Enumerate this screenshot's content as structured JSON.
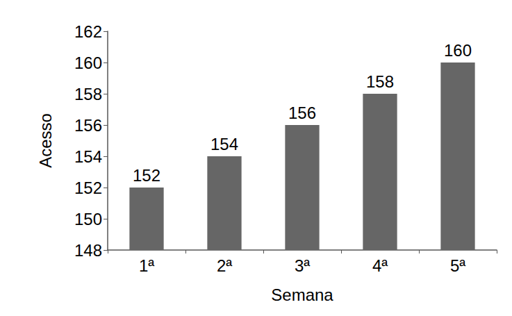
{
  "chart_data": {
    "type": "bar",
    "x_label": "Semana",
    "y_label": "Acesso",
    "categories": [
      "1ª",
      "2ª",
      "3ª",
      "4ª",
      "5ª"
    ],
    "values": [
      152,
      154,
      156,
      158,
      160
    ],
    "color": "#666666",
    "ylim": [
      148,
      162
    ],
    "yticks": [
      148,
      150,
      152,
      154,
      156,
      158,
      160,
      162
    ],
    "grid": false,
    "data_labels": true
  }
}
